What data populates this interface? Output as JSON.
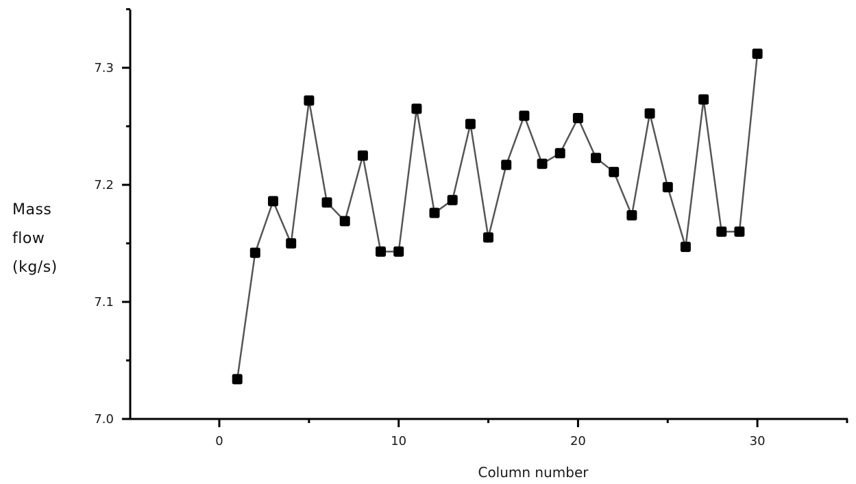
{
  "chart_data": {
    "type": "line",
    "xlabel": "Column number",
    "ylabel_lines": [
      "Mass",
      "flow",
      "(kg/s)"
    ],
    "xlim": [
      -5,
      35
    ],
    "ylim": [
      7.0,
      7.35
    ],
    "x_ticks": [
      0,
      10,
      20,
      30
    ],
    "x_tick_labels": [
      "0",
      "10",
      "20",
      "30"
    ],
    "y_ticks": [
      7.0,
      7.1,
      7.2,
      7.3
    ],
    "y_tick_labels": [
      "7.0",
      "7.1",
      "7.2",
      "7.3"
    ],
    "grid": false,
    "marker": "square",
    "line_color": "#555555",
    "marker_color": "#000000",
    "series": [
      {
        "x": [
          1,
          2,
          3,
          4,
          5,
          6,
          7,
          8,
          9,
          10,
          11,
          12,
          13,
          14,
          15,
          16,
          17,
          18,
          19,
          20,
          21,
          22,
          23,
          24,
          25,
          26,
          27,
          28,
          29,
          30
        ],
        "values": [
          7.034,
          7.142,
          7.186,
          7.15,
          7.272,
          7.185,
          7.169,
          7.225,
          7.143,
          7.143,
          7.265,
          7.176,
          7.187,
          7.252,
          7.155,
          7.217,
          7.259,
          7.218,
          7.227,
          7.257,
          7.223,
          7.211,
          7.174,
          7.261,
          7.198,
          7.147,
          7.273,
          7.16,
          7.16,
          7.312
        ]
      }
    ]
  }
}
